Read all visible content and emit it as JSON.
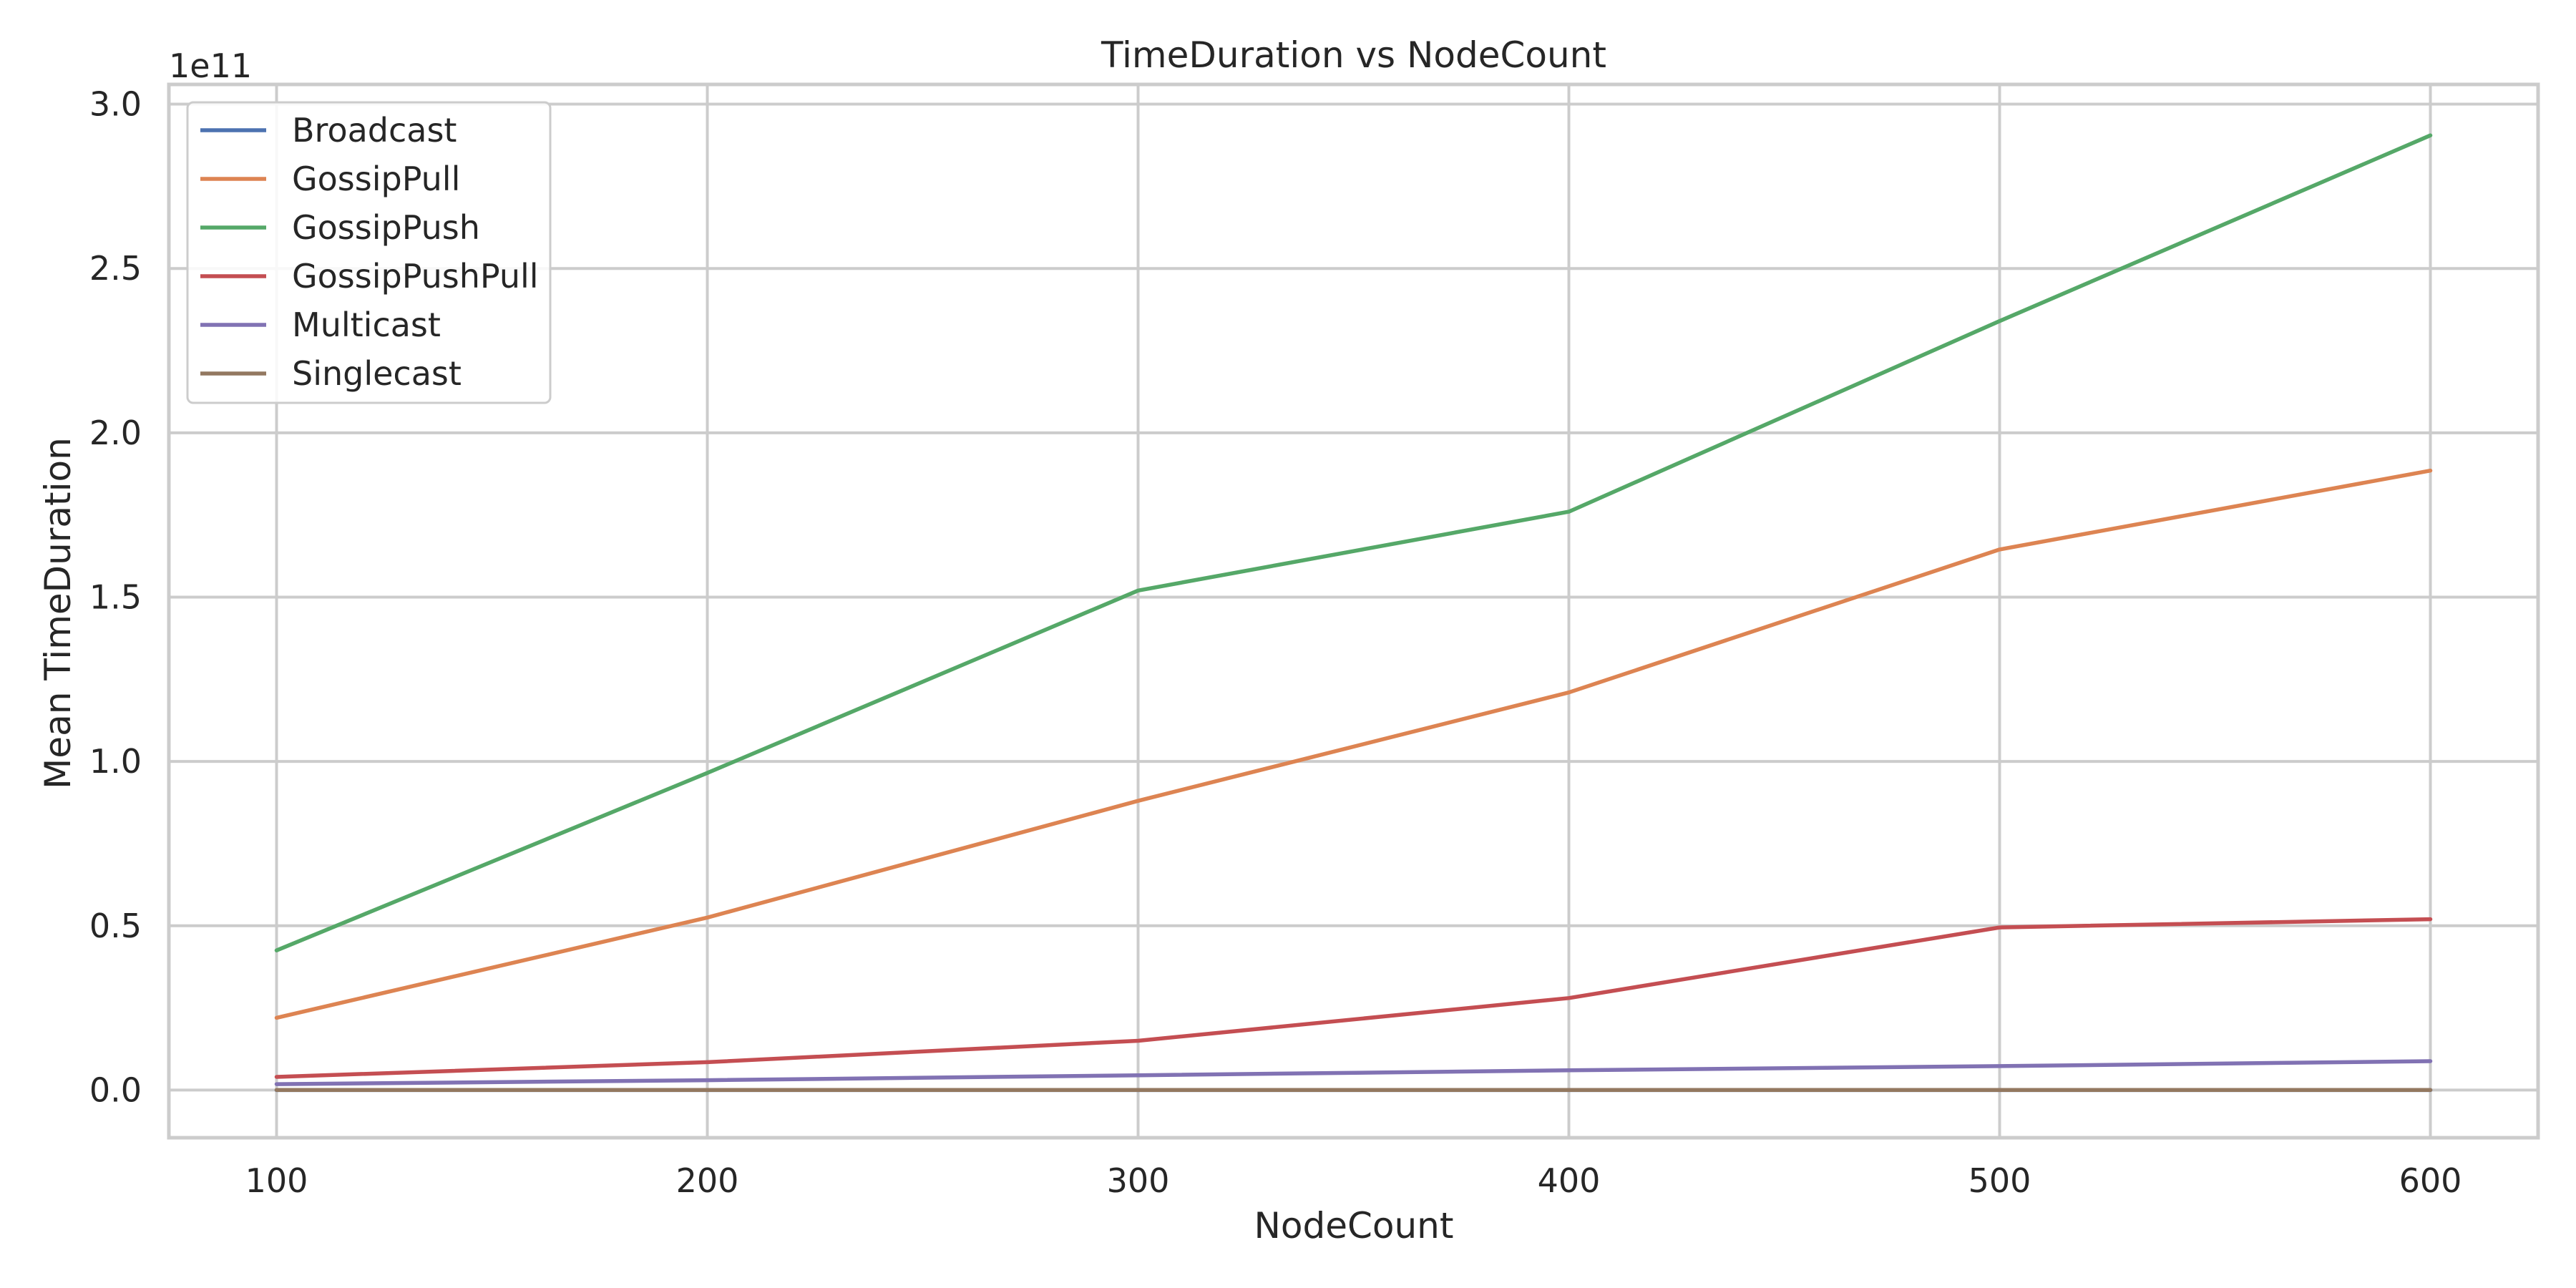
{
  "chart_data": {
    "type": "line",
    "title": "TimeDuration vs NodeCount",
    "xlabel": "NodeCount",
    "ylabel": "Mean TimeDuration",
    "y_offset_label": "1e11",
    "x": [
      100,
      200,
      300,
      400,
      500,
      600
    ],
    "xlim": [
      75,
      625
    ],
    "ylim": [
      -0.145,
      3.06
    ],
    "x_ticks": [
      "100",
      "200",
      "300",
      "400",
      "500",
      "600"
    ],
    "y_ticks": [
      "0.0",
      "0.5",
      "1.0",
      "1.5",
      "2.0",
      "2.5",
      "3.0"
    ],
    "y_tick_values": [
      0.0,
      0.5,
      1.0,
      1.5,
      2.0,
      2.5,
      3.0
    ],
    "grid": true,
    "legend_position": "upper-left",
    "series": [
      {
        "name": "Broadcast",
        "color": "#4c72b0",
        "values": [
          0.0001,
          0.0001,
          0.0001,
          0.0001,
          0.0001,
          0.0001
        ]
      },
      {
        "name": "GossipPull",
        "color": "#dd8452",
        "values": [
          0.22,
          0.525,
          0.88,
          1.21,
          1.645,
          1.885
        ]
      },
      {
        "name": "GossipPush",
        "color": "#55a868",
        "values": [
          0.425,
          0.965,
          1.52,
          1.76,
          2.34,
          2.905
        ]
      },
      {
        "name": "GossipPushPull",
        "color": "#c44e52",
        "values": [
          0.04,
          0.085,
          0.15,
          0.28,
          0.495,
          0.52
        ]
      },
      {
        "name": "Multicast",
        "color": "#8172b3",
        "values": [
          0.018,
          0.03,
          0.045,
          0.06,
          0.073,
          0.088
        ]
      },
      {
        "name": "Singlecast",
        "color": "#937860",
        "values": [
          0.0005,
          0.0005,
          0.0005,
          0.0005,
          0.0005,
          0.0005
        ]
      }
    ]
  }
}
